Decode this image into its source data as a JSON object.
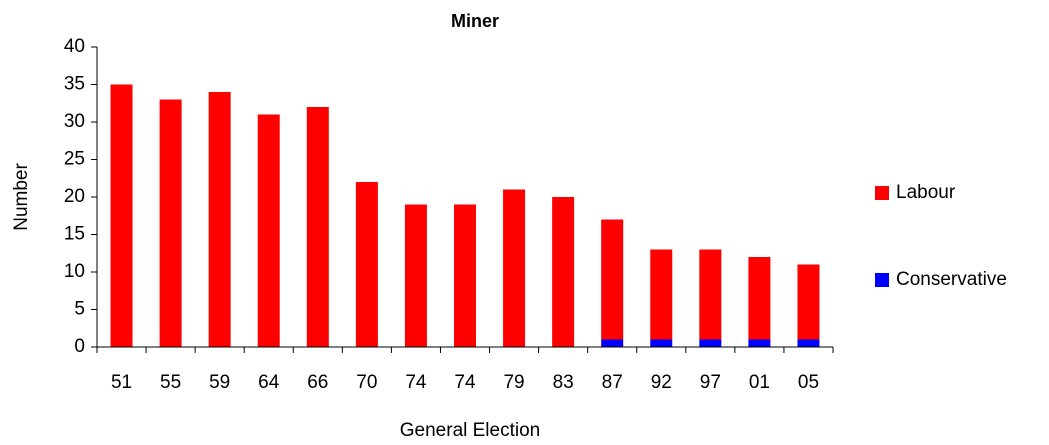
{
  "chart_data": {
    "type": "stacked_bar",
    "title": "Miner",
    "x_label": "General Election",
    "y_label": "Number",
    "categories": [
      "51",
      "55",
      "59",
      "64",
      "66",
      "70",
      "74",
      "74",
      "79",
      "83",
      "87",
      "92",
      "97",
      "01",
      "05"
    ],
    "series": [
      {
        "name": "Conservative",
        "color": "#0000ff",
        "values": [
          0,
          0,
          0,
          0,
          0,
          0,
          0,
          0,
          0,
          0,
          1,
          1,
          1,
          1,
          1
        ]
      },
      {
        "name": "Labour",
        "color": "#ff0000",
        "values": [
          35,
          33,
          34,
          31,
          32,
          22,
          19,
          19,
          21,
          20,
          16,
          12,
          12,
          11,
          10
        ]
      }
    ],
    "ylim": [
      0,
      40
    ],
    "yticks": [
      0,
      5,
      10,
      15,
      20,
      25,
      30,
      35,
      40
    ],
    "grid": false,
    "legend": "right"
  }
}
